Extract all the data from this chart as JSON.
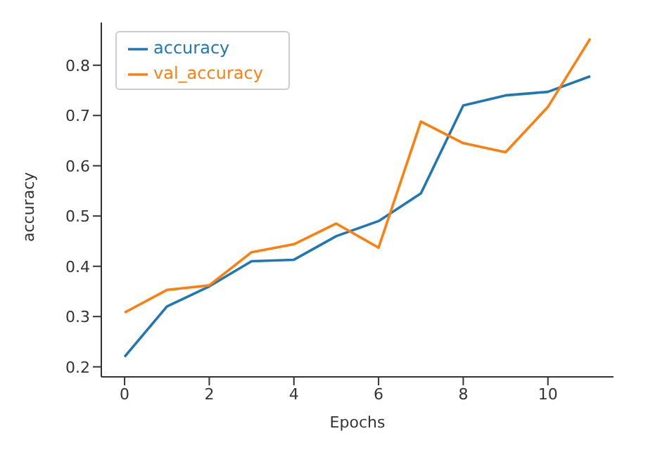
{
  "chart_data": {
    "type": "line",
    "xlabel": "Epochs",
    "ylabel": "accuracy",
    "x": [
      0,
      1,
      2,
      3,
      4,
      5,
      6,
      7,
      8,
      9,
      10,
      11
    ],
    "series": [
      {
        "name": "accuracy",
        "color": "#1f77b4",
        "values": [
          0.22,
          0.32,
          0.36,
          0.41,
          0.413,
          0.46,
          0.49,
          0.545,
          0.72,
          0.74,
          0.747,
          0.778
        ]
      },
      {
        "name": "val_accuracy",
        "color": "#ff7f0e",
        "values": [
          0.308,
          0.353,
          0.362,
          0.428,
          0.444,
          0.485,
          0.437,
          0.688,
          0.645,
          0.627,
          0.717,
          0.853
        ]
      }
    ],
    "xlim": [
      -0.55,
      11.55
    ],
    "xticks": [
      0,
      2,
      4,
      6,
      8,
      10
    ],
    "ylim": [
      0.18,
      0.885
    ],
    "yticks": [
      0.2,
      0.3,
      0.4,
      0.5,
      0.6,
      0.7,
      0.8
    ],
    "legend": "top left",
    "grid": false,
    "marker": "none",
    "line_style": "solid"
  }
}
